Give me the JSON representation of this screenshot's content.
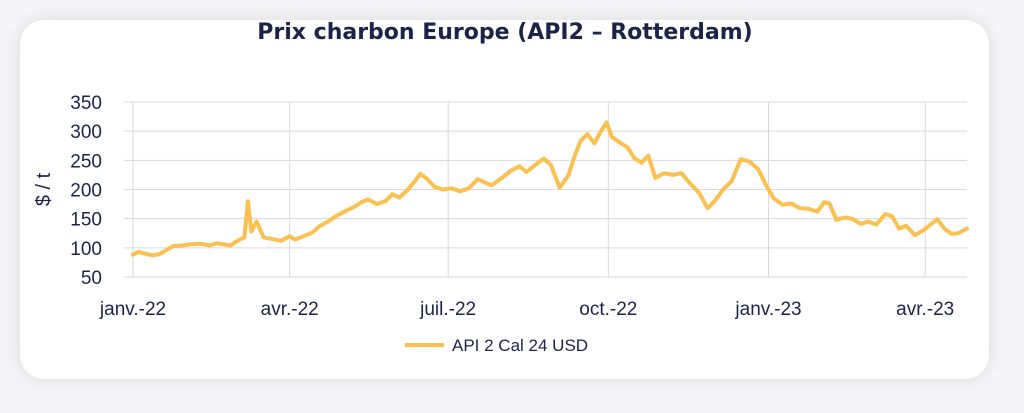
{
  "chart_data": {
    "type": "line",
    "title": "Prix charbon Europe (API2 – Rotterdam)",
    "ylabel": "$ / t",
    "xlabel": "",
    "ylim": [
      50,
      350
    ],
    "yticks": [
      350,
      300,
      250,
      200,
      150,
      100,
      50
    ],
    "xlim": [
      "2022-01-01",
      "2023-04-25"
    ],
    "xticks": [
      {
        "date": "2022-01-01",
        "label": "janv.-22"
      },
      {
        "date": "2022-04-01",
        "label": "avr.-22"
      },
      {
        "date": "2022-07-01",
        "label": "juil.-22"
      },
      {
        "date": "2022-10-01",
        "label": "oct.-22"
      },
      {
        "date": "2023-01-01",
        "label": "janv.-23"
      },
      {
        "date": "2023-04-01",
        "label": "avr.-23"
      }
    ],
    "grid": true,
    "legend_position": "bottom",
    "colors": {
      "series": "#fbc04f",
      "text": "#1c2349",
      "grid": "#d9d9d9"
    },
    "series": [
      {
        "name": "API 2 Cal 24 USD",
        "points": [
          [
            "2022-01-01",
            88
          ],
          [
            "2022-01-04",
            93
          ],
          [
            "2022-01-08",
            90
          ],
          [
            "2022-01-12",
            87
          ],
          [
            "2022-01-16",
            89
          ],
          [
            "2022-01-20",
            96
          ],
          [
            "2022-01-24",
            103
          ],
          [
            "2022-01-29",
            104
          ],
          [
            "2022-02-03",
            106
          ],
          [
            "2022-02-09",
            107
          ],
          [
            "2022-02-14",
            104
          ],
          [
            "2022-02-18",
            108
          ],
          [
            "2022-02-22",
            106
          ],
          [
            "2022-02-26",
            104
          ],
          [
            "2022-03-02",
            112
          ],
          [
            "2022-03-06",
            118
          ],
          [
            "2022-03-08",
            180
          ],
          [
            "2022-03-10",
            128
          ],
          [
            "2022-03-13",
            145
          ],
          [
            "2022-03-17",
            118
          ],
          [
            "2022-03-22",
            115
          ],
          [
            "2022-03-27",
            112
          ],
          [
            "2022-04-01",
            120
          ],
          [
            "2022-04-04",
            114
          ],
          [
            "2022-04-09",
            120
          ],
          [
            "2022-04-14",
            126
          ],
          [
            "2022-04-18",
            137
          ],
          [
            "2022-04-23",
            145
          ],
          [
            "2022-04-28",
            155
          ],
          [
            "2022-05-03",
            163
          ],
          [
            "2022-05-08",
            170
          ],
          [
            "2022-05-12",
            178
          ],
          [
            "2022-05-16",
            183
          ],
          [
            "2022-05-21",
            175
          ],
          [
            "2022-05-26",
            180
          ],
          [
            "2022-05-30",
            192
          ],
          [
            "2022-06-03",
            186
          ],
          [
            "2022-06-08",
            200
          ],
          [
            "2022-06-12",
            215
          ],
          [
            "2022-06-15",
            227
          ],
          [
            "2022-06-19",
            218
          ],
          [
            "2022-06-23",
            205
          ],
          [
            "2022-06-28",
            200
          ],
          [
            "2022-07-03",
            202
          ],
          [
            "2022-07-08",
            197
          ],
          [
            "2022-07-13",
            202
          ],
          [
            "2022-07-18",
            218
          ],
          [
            "2022-07-22",
            212
          ],
          [
            "2022-07-26",
            207
          ],
          [
            "2022-08-01",
            220
          ],
          [
            "2022-08-06",
            232
          ],
          [
            "2022-08-11",
            240
          ],
          [
            "2022-08-15",
            230
          ],
          [
            "2022-08-20",
            242
          ],
          [
            "2022-08-25",
            253
          ],
          [
            "2022-08-29",
            242
          ],
          [
            "2022-09-03",
            203
          ],
          [
            "2022-09-08",
            224
          ],
          [
            "2022-09-12",
            260
          ],
          [
            "2022-09-15",
            283
          ],
          [
            "2022-09-19",
            295
          ],
          [
            "2022-09-23",
            279
          ],
          [
            "2022-09-26",
            296
          ],
          [
            "2022-09-30",
            315
          ],
          [
            "2022-10-03",
            290
          ],
          [
            "2022-10-07",
            282
          ],
          [
            "2022-10-12",
            272
          ],
          [
            "2022-10-16",
            254
          ],
          [
            "2022-10-20",
            246
          ],
          [
            "2022-10-24",
            258
          ],
          [
            "2022-10-28",
            220
          ],
          [
            "2022-11-02",
            228
          ],
          [
            "2022-11-07",
            225
          ],
          [
            "2022-11-12",
            228
          ],
          [
            "2022-11-17",
            210
          ],
          [
            "2022-11-22",
            195
          ],
          [
            "2022-11-27",
            168
          ],
          [
            "2022-12-01",
            180
          ],
          [
            "2022-12-06",
            200
          ],
          [
            "2022-12-11",
            215
          ],
          [
            "2022-12-16",
            252
          ],
          [
            "2022-12-21",
            248
          ],
          [
            "2022-12-26",
            235
          ],
          [
            "2022-12-31",
            205
          ],
          [
            "2023-01-04",
            185
          ],
          [
            "2023-01-09",
            174
          ],
          [
            "2023-01-14",
            176
          ],
          [
            "2023-01-19",
            168
          ],
          [
            "2023-01-24",
            167
          ],
          [
            "2023-01-29",
            162
          ],
          [
            "2023-02-02",
            178
          ],
          [
            "2023-02-05",
            176
          ],
          [
            "2023-02-09",
            148
          ],
          [
            "2023-02-14",
            152
          ],
          [
            "2023-02-18",
            150
          ],
          [
            "2023-02-23",
            141
          ],
          [
            "2023-02-27",
            145
          ],
          [
            "2023-03-04",
            140
          ],
          [
            "2023-03-09",
            158
          ],
          [
            "2023-03-13",
            154
          ],
          [
            "2023-03-17",
            133
          ],
          [
            "2023-03-21",
            138
          ],
          [
            "2023-03-26",
            122
          ],
          [
            "2023-03-31",
            130
          ],
          [
            "2023-04-04",
            140
          ],
          [
            "2023-04-08",
            149
          ],
          [
            "2023-04-12",
            133
          ],
          [
            "2023-04-16",
            124
          ],
          [
            "2023-04-20",
            125
          ],
          [
            "2023-04-25",
            133
          ]
        ]
      }
    ]
  }
}
